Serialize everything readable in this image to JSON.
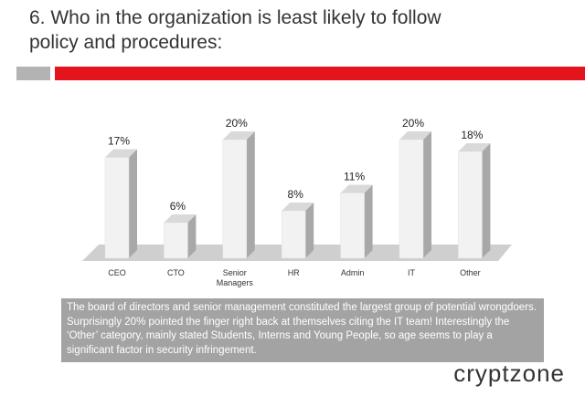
{
  "chart_data": {
    "type": "bar",
    "title": "6. Who in the organization is least likely to follow policy and procedures:",
    "categories": [
      "CEO",
      "CTO",
      "Senior Managers",
      "HR",
      "Admin",
      "IT",
      "Other"
    ],
    "values": [
      17,
      6,
      20,
      8,
      11,
      20,
      18
    ],
    "value_labels": [
      "17%",
      "6%",
      "20%",
      "8%",
      "11%",
      "20%",
      "18%"
    ],
    "color": "#f2f2f2",
    "caption": "The board of directors and senior management constituted the largest group of potential wrongdoers. Surprisingly 20% pointed the finger right back at themselves citing the IT team! Interestingly the ‘Other’ category, mainly stated Students, Interns and Young People, so age seems to play a significant factor in security infringement.",
    "logo": "cryptzone"
  }
}
